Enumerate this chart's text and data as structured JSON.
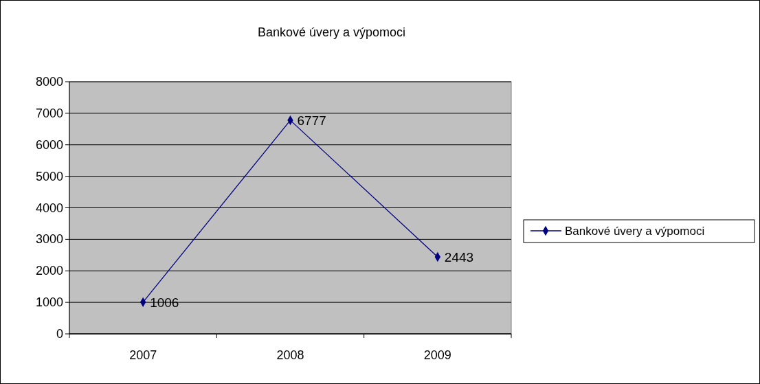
{
  "chart_data": {
    "type": "line",
    "title": "Bankové úvery a výpomoci",
    "categories": [
      "2007",
      "2008",
      "2009"
    ],
    "series": [
      {
        "name": "Bankové úvery a výpomoci",
        "color": "#000080",
        "values": [
          1006,
          6777,
          2443
        ]
      }
    ],
    "ylim": [
      0,
      8000
    ],
    "yticks": [
      0,
      1000,
      2000,
      3000,
      4000,
      5000,
      6000,
      7000,
      8000
    ],
    "grid": "y",
    "legend": "right",
    "marker": "diamond",
    "line_style": "solid",
    "data_labels": true
  }
}
